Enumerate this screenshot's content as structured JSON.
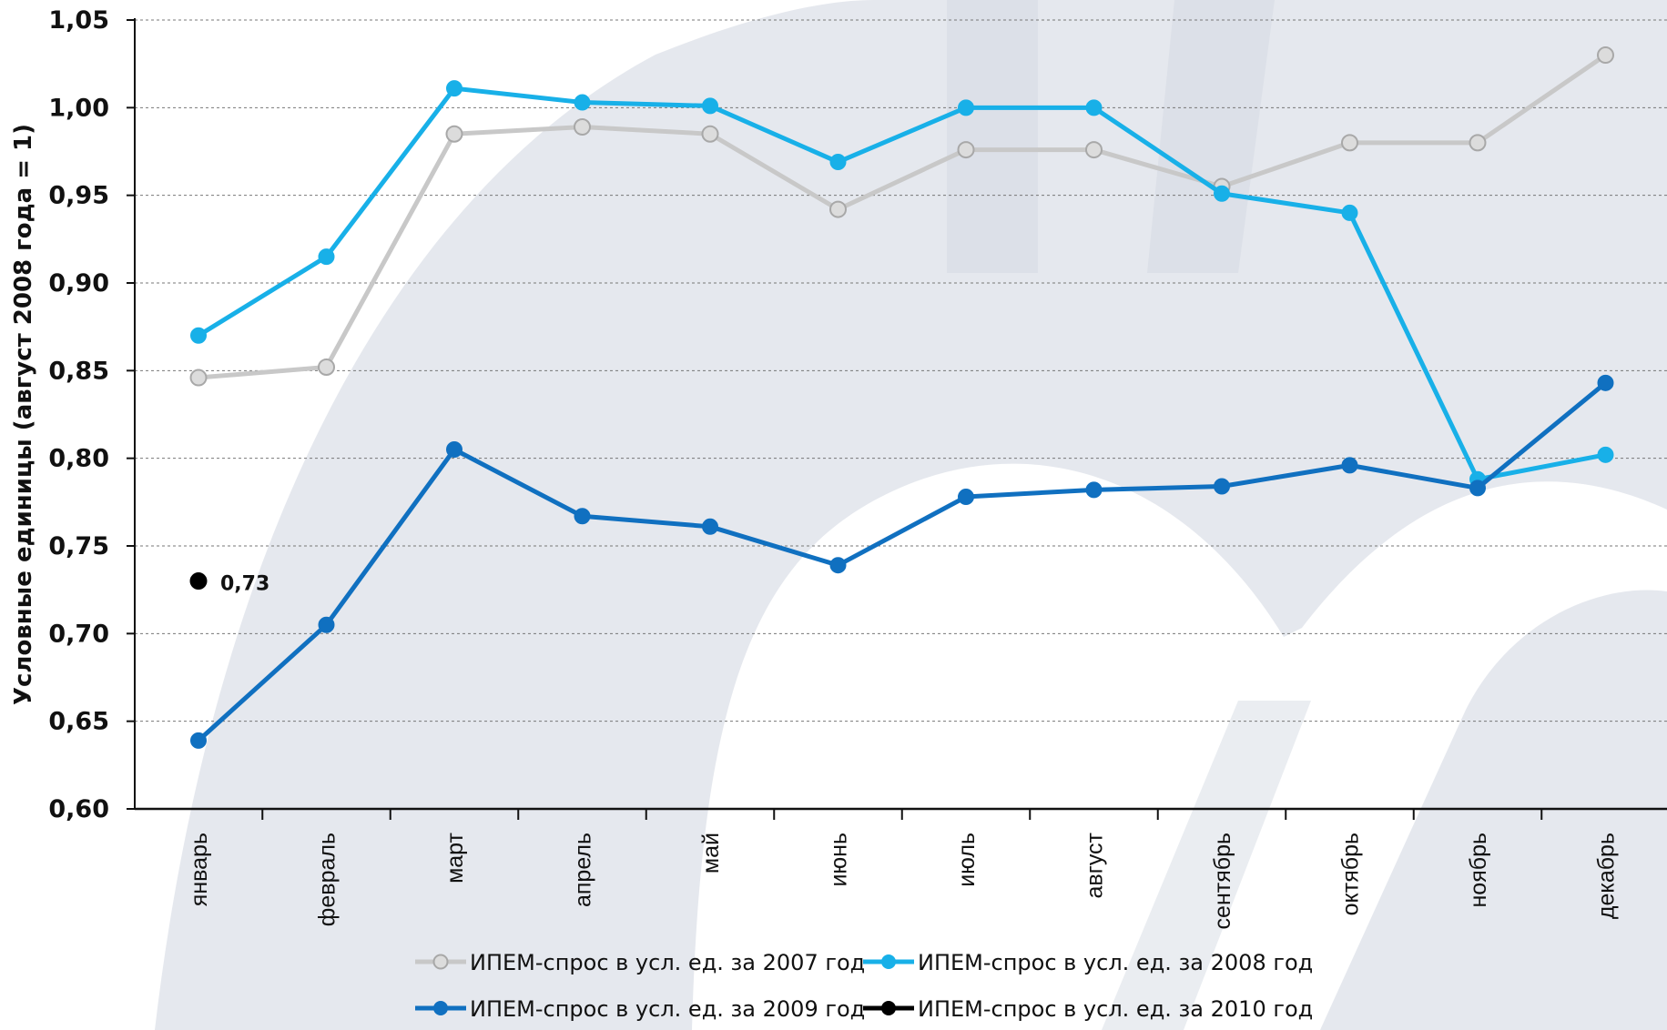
{
  "chart_data": {
    "type": "line",
    "ylabel": "Условные единицы (август 2008 года = 1)",
    "ylim": [
      0.6,
      1.05
    ],
    "yticks": [
      "0,60",
      "0,65",
      "0,70",
      "0,75",
      "0,80",
      "0,85",
      "0,90",
      "0,95",
      "1,00",
      "1,05"
    ],
    "ytick_values": [
      0.6,
      0.65,
      0.7,
      0.75,
      0.8,
      0.85,
      0.9,
      0.95,
      1.0,
      1.05
    ],
    "grid": "horizontal dashed",
    "legend_position": "bottom",
    "categories": [
      "январь",
      "февраль",
      "март",
      "апрель",
      "май",
      "июнь",
      "июль",
      "август",
      "сентябрь",
      "октябрь",
      "ноябрь",
      "декабрь"
    ],
    "series": [
      {
        "name": "ИПЕМ-спрос в усл. ед. за 2007 год",
        "color": "#c8c8c8",
        "marker_fill": "#dcdcdc",
        "values": [
          0.846,
          0.852,
          0.985,
          0.989,
          0.985,
          0.942,
          0.976,
          0.976,
          0.955,
          0.98,
          0.98,
          1.03
        ]
      },
      {
        "name": "ИПЕМ-спрос в усл. ед. за 2008 год",
        "color": "#18b0e8",
        "marker_fill": "#18b0e8",
        "values": [
          0.87,
          0.915,
          1.011,
          1.003,
          1.001,
          0.969,
          1.0,
          1.0,
          0.951,
          0.94,
          0.788,
          0.802
        ]
      },
      {
        "name": "ИПЕМ-спрос в усл. ед. за 2009 год",
        "color": "#1070c0",
        "marker_fill": "#1070c0",
        "values": [
          0.639,
          0.705,
          0.805,
          0.767,
          0.761,
          0.739,
          0.778,
          0.782,
          0.784,
          0.796,
          0.783,
          0.843
        ]
      },
      {
        "name": "ИПЕМ-спрос в усл. ед. за 2010 год",
        "color": "#000000",
        "marker_fill": "#000000",
        "values": [
          0.73,
          null,
          null,
          null,
          null,
          null,
          null,
          null,
          null,
          null,
          null,
          null
        ]
      }
    ],
    "annotations": [
      {
        "category": "январь",
        "value": 0.73,
        "text": "0,73"
      }
    ]
  }
}
